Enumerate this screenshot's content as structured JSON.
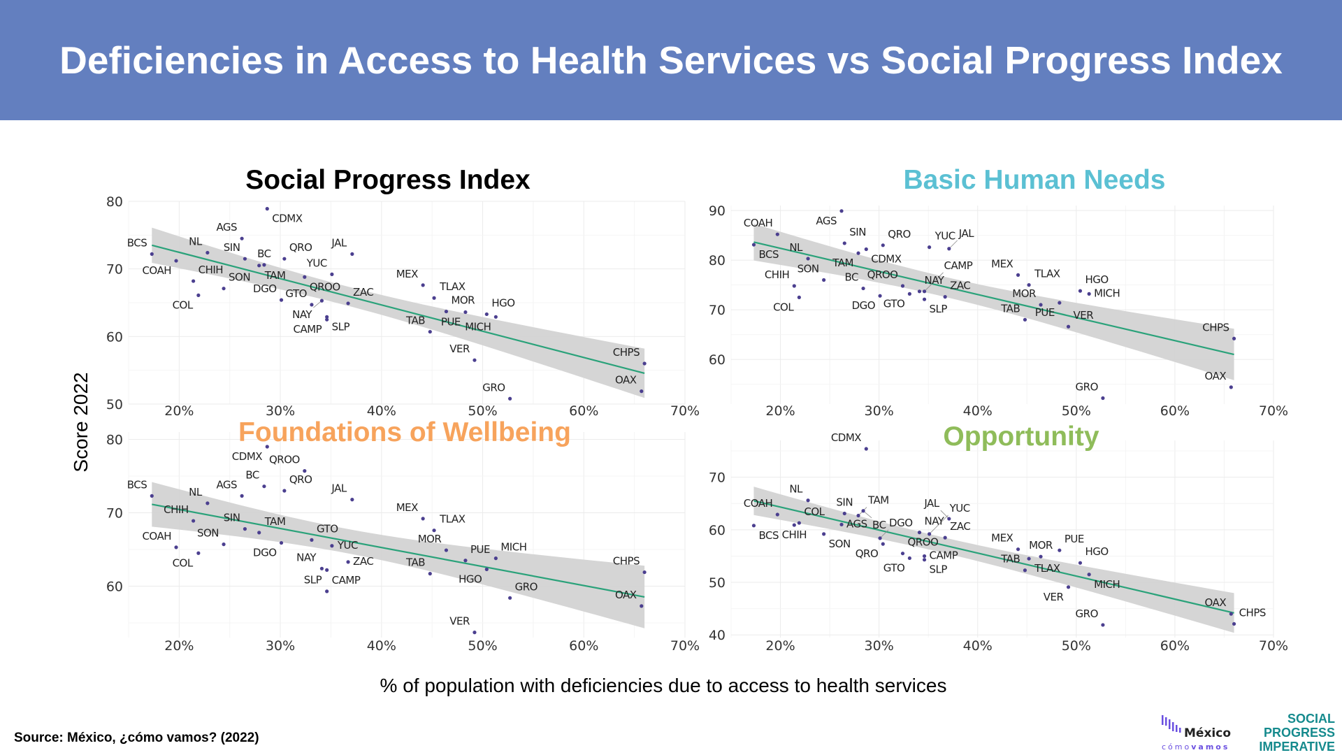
{
  "header": {
    "title": "Deficiencies in Access to Health Services vs Social Progress Index"
  },
  "axes": {
    "ylabel": "Score 2022",
    "xlabel": "% of population with deficiencies due to access to health services"
  },
  "source": "Source: México, ¿cómo vamos? (2022)",
  "logos": {
    "mexico_como_vamos": "México cómo vamos",
    "spi": [
      "SOCIAL",
      "PROGRESS",
      "IMPERATIVE"
    ]
  },
  "colors": {
    "header_bg": "#637fbf",
    "point": "#4b3f8f",
    "fit_line": "#2aa27a",
    "band": "#d3d3d3",
    "mcv_purple": "#6a4fe0",
    "spi_teal": "#158a8d"
  },
  "chart_data": [
    {
      "type": "scatter",
      "title": "Social Progress Index",
      "title_color": "#000000",
      "xlim": [
        15,
        70
      ],
      "ylim": [
        50,
        80
      ],
      "xticks": [
        "20%",
        "30%",
        "40%",
        "50%",
        "60%",
        "70%"
      ],
      "yticks": [
        "50",
        "60",
        "70",
        "80"
      ],
      "grid": true,
      "fit": "linear with confidence band",
      "points": [
        {
          "label": "BCS",
          "x": 17.3,
          "y": 72.2
        },
        {
          "label": "COAH",
          "x": 19.7,
          "y": 71.2
        },
        {
          "label": "CHIH",
          "x": 21.4,
          "y": 68.2
        },
        {
          "label": "COL",
          "x": 21.9,
          "y": 66.1
        },
        {
          "label": "NL",
          "x": 22.8,
          "y": 72.4
        },
        {
          "label": "SON",
          "x": 24.4,
          "y": 67.1
        },
        {
          "label": "AGS",
          "x": 26.2,
          "y": 74.5
        },
        {
          "label": "SIN",
          "x": 26.5,
          "y": 71.5
        },
        {
          "label": "TAM",
          "x": 27.9,
          "y": 70.5
        },
        {
          "label": "BC",
          "x": 28.4,
          "y": 70.6
        },
        {
          "label": "CDMX",
          "x": 28.7,
          "y": 78.9
        },
        {
          "label": "DGO",
          "x": 30.1,
          "y": 65.4
        },
        {
          "label": "QRO",
          "x": 30.4,
          "y": 71.5
        },
        {
          "label": "QROO",
          "x": 32.4,
          "y": 68.8
        },
        {
          "label": "GTO",
          "x": 33.1,
          "y": 64.7
        },
        {
          "label": "NAY",
          "x": 34.1,
          "y": 65.3
        },
        {
          "label": "SLP",
          "x": 34.6,
          "y": 62.9
        },
        {
          "label": "CAMP",
          "x": 34.6,
          "y": 62.5
        },
        {
          "label": "YUC",
          "x": 35.1,
          "y": 69.2
        },
        {
          "label": "ZAC",
          "x": 36.7,
          "y": 64.9
        },
        {
          "label": "JAL",
          "x": 37.1,
          "y": 72.2
        },
        {
          "label": "MEX",
          "x": 44.1,
          "y": 67.6
        },
        {
          "label": "TAB",
          "x": 44.8,
          "y": 60.7
        },
        {
          "label": "TLAX",
          "x": 45.2,
          "y": 65.7
        },
        {
          "label": "MOR",
          "x": 46.4,
          "y": 63.7
        },
        {
          "label": "PUE",
          "x": 48.3,
          "y": 63.6
        },
        {
          "label": "VER",
          "x": 49.2,
          "y": 56.5
        },
        {
          "label": "HGO",
          "x": 50.4,
          "y": 63.3
        },
        {
          "label": "MICH",
          "x": 51.3,
          "y": 62.9
        },
        {
          "label": "GRO",
          "x": 52.7,
          "y": 50.8
        },
        {
          "label": "OAX",
          "x": 65.7,
          "y": 51.9
        },
        {
          "label": "CHPS",
          "x": 66.0,
          "y": 56.0
        }
      ]
    },
    {
      "type": "scatter",
      "title": "Basic Human Needs",
      "title_color": "#5bc0d3",
      "xlim": [
        15,
        70
      ],
      "ylim": [
        51,
        91
      ],
      "xticks": [
        "20%",
        "30%",
        "40%",
        "50%",
        "60%",
        "70%"
      ],
      "yticks": [
        "60",
        "70",
        "80",
        "90"
      ],
      "grid": true,
      "fit": "linear with confidence band",
      "points": [
        {
          "label": "BCS",
          "x": 17.3,
          "y": 83.1
        },
        {
          "label": "COAH",
          "x": 19.7,
          "y": 85.2
        },
        {
          "label": "CHIH",
          "x": 21.4,
          "y": 74.8
        },
        {
          "label": "COL",
          "x": 21.9,
          "y": 72.5
        },
        {
          "label": "NL",
          "x": 22.8,
          "y": 80.3
        },
        {
          "label": "SON",
          "x": 24.4,
          "y": 76.0
        },
        {
          "label": "AGS",
          "x": 26.2,
          "y": 89.9
        },
        {
          "label": "SIN",
          "x": 26.5,
          "y": 83.4
        },
        {
          "label": "TAM",
          "x": 27.9,
          "y": 81.4
        },
        {
          "label": "BC",
          "x": 28.4,
          "y": 74.3
        },
        {
          "label": "CDMX",
          "x": 28.7,
          "y": 82.2
        },
        {
          "label": "DGO",
          "x": 30.1,
          "y": 72.8
        },
        {
          "label": "QRO",
          "x": 30.4,
          "y": 83.0
        },
        {
          "label": "QROO",
          "x": 32.4,
          "y": 74.8
        },
        {
          "label": "GTO",
          "x": 33.1,
          "y": 73.2
        },
        {
          "label": "NAY",
          "x": 34.1,
          "y": 73.7
        },
        {
          "label": "SLP",
          "x": 34.6,
          "y": 72.1
        },
        {
          "label": "CAMP",
          "x": 34.6,
          "y": 73.7
        },
        {
          "label": "YUC",
          "x": 35.1,
          "y": 82.6
        },
        {
          "label": "ZAC",
          "x": 36.7,
          "y": 72.6
        },
        {
          "label": "JAL",
          "x": 37.1,
          "y": 82.3
        },
        {
          "label": "MEX",
          "x": 44.1,
          "y": 77.0
        },
        {
          "label": "TAB",
          "x": 44.8,
          "y": 68.0
        },
        {
          "label": "TLAX",
          "x": 45.2,
          "y": 75.0
        },
        {
          "label": "MOR",
          "x": 46.4,
          "y": 71.0
        },
        {
          "label": "PUE",
          "x": 48.3,
          "y": 71.4
        },
        {
          "label": "VER",
          "x": 49.2,
          "y": 66.6
        },
        {
          "label": "HGO",
          "x": 50.4,
          "y": 73.8
        },
        {
          "label": "MICH",
          "x": 51.3,
          "y": 73.2
        },
        {
          "label": "GRO",
          "x": 52.7,
          "y": 52.2
        },
        {
          "label": "OAX",
          "x": 65.7,
          "y": 54.4
        },
        {
          "label": "CHPS",
          "x": 66.0,
          "y": 64.2
        }
      ]
    },
    {
      "type": "scatter",
      "title": "Foundations of Wellbeing",
      "title_color": "#f7a35c",
      "xlim": [
        15,
        70
      ],
      "ylim": [
        53,
        81
      ],
      "xticks": [
        "20%",
        "30%",
        "40%",
        "50%",
        "60%",
        "70%"
      ],
      "yticks": [
        "60",
        "70",
        "80"
      ],
      "grid": true,
      "fit": "linear with confidence band",
      "points": [
        {
          "label": "BCS",
          "x": 17.3,
          "y": 72.3
        },
        {
          "label": "COAH",
          "x": 19.7,
          "y": 65.3
        },
        {
          "label": "CHIH",
          "x": 21.4,
          "y": 68.9
        },
        {
          "label": "COL",
          "x": 21.9,
          "y": 64.5
        },
        {
          "label": "NL",
          "x": 22.8,
          "y": 71.3
        },
        {
          "label": "SON",
          "x": 24.4,
          "y": 65.7
        },
        {
          "label": "AGS",
          "x": 26.2,
          "y": 72.3
        },
        {
          "label": "SIN",
          "x": 26.5,
          "y": 67.8
        },
        {
          "label": "TAM",
          "x": 27.9,
          "y": 67.3
        },
        {
          "label": "BC",
          "x": 28.4,
          "y": 73.6
        },
        {
          "label": "CDMX",
          "x": 28.7,
          "y": 79.0
        },
        {
          "label": "DGO",
          "x": 30.1,
          "y": 65.9
        },
        {
          "label": "QRO",
          "x": 30.4,
          "y": 73.0
        },
        {
          "label": "QROO",
          "x": 32.4,
          "y": 75.7
        },
        {
          "label": "GTO",
          "x": 33.1,
          "y": 66.3
        },
        {
          "label": "NAY",
          "x": 34.1,
          "y": 62.4
        },
        {
          "label": "SLP",
          "x": 34.6,
          "y": 62.2
        },
        {
          "label": "CAMP",
          "x": 34.6,
          "y": 59.3
        },
        {
          "label": "YUC",
          "x": 35.1,
          "y": 65.5
        },
        {
          "label": "ZAC",
          "x": 36.7,
          "y": 63.3
        },
        {
          "label": "JAL",
          "x": 37.1,
          "y": 71.8
        },
        {
          "label": "MEX",
          "x": 44.1,
          "y": 69.2
        },
        {
          "label": "TAB",
          "x": 44.8,
          "y": 61.7
        },
        {
          "label": "TLAX",
          "x": 45.2,
          "y": 67.6
        },
        {
          "label": "MOR",
          "x": 46.4,
          "y": 64.9
        },
        {
          "label": "PUE",
          "x": 48.3,
          "y": 63.5
        },
        {
          "label": "VER",
          "x": 49.2,
          "y": 53.7
        },
        {
          "label": "HGO",
          "x": 50.4,
          "y": 62.3
        },
        {
          "label": "MICH",
          "x": 51.3,
          "y": 63.8
        },
        {
          "label": "GRO",
          "x": 52.7,
          "y": 58.4
        },
        {
          "label": "OAX",
          "x": 65.7,
          "y": 57.3
        },
        {
          "label": "CHPS",
          "x": 66.0,
          "y": 61.9
        }
      ]
    },
    {
      "type": "scatter",
      "title": "Opportunity",
      "title_color": "#8fbc5a",
      "xlim": [
        15,
        70
      ],
      "ylim": [
        39.5,
        77
      ],
      "xticks": [
        "20%",
        "30%",
        "40%",
        "50%",
        "60%",
        "70%"
      ],
      "yticks": [
        "40",
        "50",
        "60",
        "70"
      ],
      "grid": true,
      "fit": "linear with confidence band",
      "points": [
        {
          "label": "BCS",
          "x": 17.3,
          "y": 60.8
        },
        {
          "label": "COAH",
          "x": 19.7,
          "y": 62.9
        },
        {
          "label": "CHIH",
          "x": 21.4,
          "y": 60.9
        },
        {
          "label": "COL",
          "x": 21.9,
          "y": 61.3
        },
        {
          "label": "NL",
          "x": 22.8,
          "y": 65.6
        },
        {
          "label": "SON",
          "x": 24.4,
          "y": 59.2
        },
        {
          "label": "AGS",
          "x": 26.2,
          "y": 61.0
        },
        {
          "label": "SIN",
          "x": 26.5,
          "y": 63.1
        },
        {
          "label": "TAM",
          "x": 27.9,
          "y": 62.7
        },
        {
          "label": "BC",
          "x": 28.4,
          "y": 63.6
        },
        {
          "label": "CDMX",
          "x": 28.7,
          "y": 75.4
        },
        {
          "label": "DGO",
          "x": 30.1,
          "y": 58.4
        },
        {
          "label": "QRO",
          "x": 30.4,
          "y": 57.3
        },
        {
          "label": "QROO",
          "x": 32.4,
          "y": 55.5
        },
        {
          "label": "GTO",
          "x": 33.1,
          "y": 54.6
        },
        {
          "label": "NAY",
          "x": 34.1,
          "y": 59.5
        },
        {
          "label": "SLP",
          "x": 34.6,
          "y": 54.3
        },
        {
          "label": "CAMP",
          "x": 34.6,
          "y": 55.0
        },
        {
          "label": "YUC",
          "x": 35.1,
          "y": 59.2
        },
        {
          "label": "ZAC",
          "x": 36.7,
          "y": 58.5
        },
        {
          "label": "JAL",
          "x": 37.1,
          "y": 62.1
        },
        {
          "label": "MEX",
          "x": 44.1,
          "y": 56.3
        },
        {
          "label": "TAB",
          "x": 44.8,
          "y": 52.3
        },
        {
          "label": "TLAX",
          "x": 45.2,
          "y": 54.5
        },
        {
          "label": "MOR",
          "x": 46.4,
          "y": 54.9
        },
        {
          "label": "PUE",
          "x": 48.3,
          "y": 56.1
        },
        {
          "label": "VER",
          "x": 49.2,
          "y": 49.1
        },
        {
          "label": "HGO",
          "x": 50.4,
          "y": 53.7
        },
        {
          "label": "MICH",
          "x": 51.3,
          "y": 51.5
        },
        {
          "label": "GRO",
          "x": 52.7,
          "y": 41.9
        },
        {
          "label": "OAX",
          "x": 65.7,
          "y": 44.0
        },
        {
          "label": "CHPS",
          "x": 66.0,
          "y": 42.1
        }
      ]
    }
  ]
}
